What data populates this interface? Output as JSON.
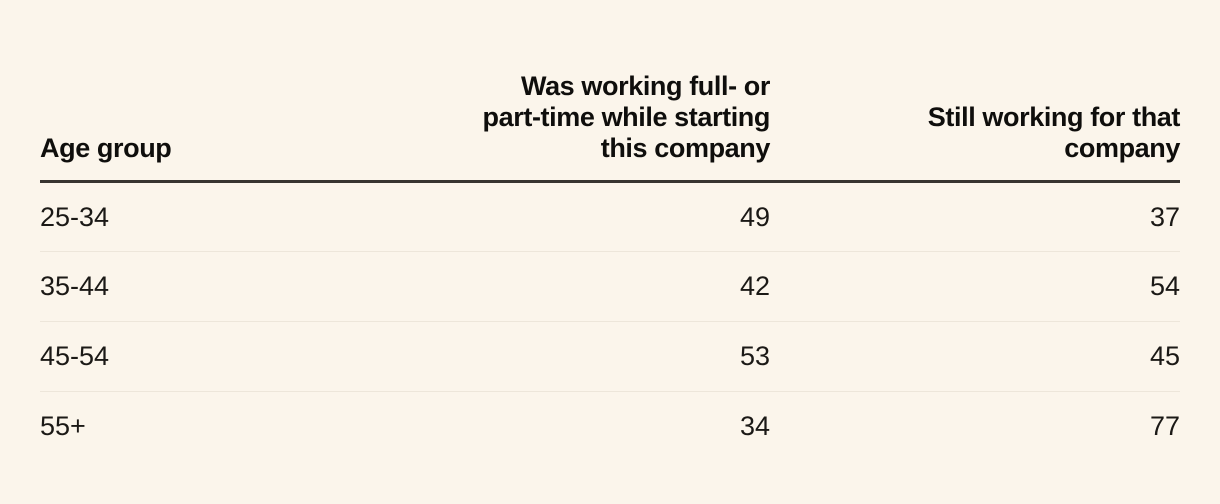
{
  "page": {
    "background_color": "#FBF5EB",
    "text_color": "#1B1916",
    "header_rule_color": "#383530",
    "row_divider_color": "#EDE6DA"
  },
  "table": {
    "headers": {
      "age_group": "Age group",
      "working_while_starting": "Was working full- or\npart-time while starting\nthis company",
      "still_working": "Still working for that\ncompany"
    },
    "rows": [
      {
        "age_group": "25-34",
        "working_while_starting": "49",
        "still_working": "37"
      },
      {
        "age_group": "35-44",
        "working_while_starting": "42",
        "still_working": "54"
      },
      {
        "age_group": "45-54",
        "working_while_starting": "53",
        "still_working": "45"
      },
      {
        "age_group": "55+",
        "working_while_starting": "34",
        "still_working": "77"
      }
    ]
  },
  "chart_data": {
    "type": "table",
    "columns": [
      "Age group",
      "Was working full- or part-time while starting this company",
      "Still working for that company"
    ],
    "categories": [
      "25-34",
      "35-44",
      "45-54",
      "55+"
    ],
    "series": [
      {
        "name": "Was working full- or part-time while starting this company",
        "values": [
          49,
          42,
          53,
          34
        ]
      },
      {
        "name": "Still working for that company",
        "values": [
          37,
          54,
          45,
          77
        ]
      }
    ]
  }
}
